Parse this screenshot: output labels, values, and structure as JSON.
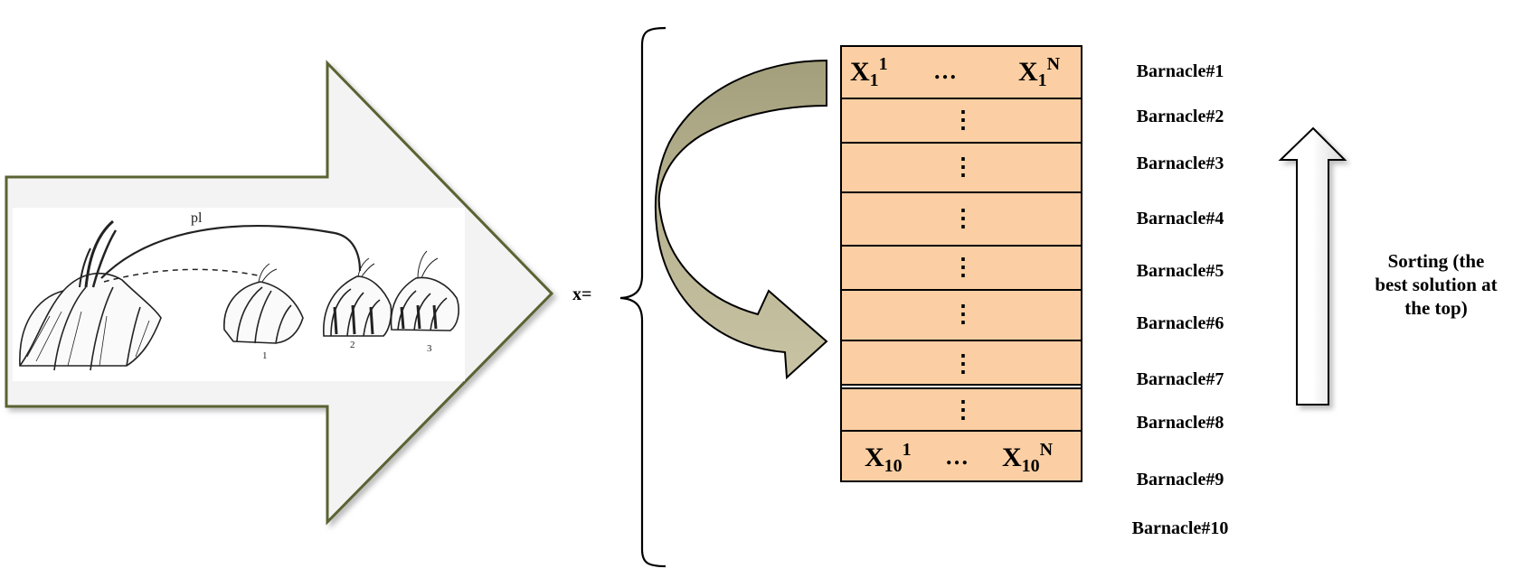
{
  "illustration": {
    "arc_label": "pl",
    "barnacle_numbers": [
      "1",
      "2",
      "3"
    ]
  },
  "matrix": {
    "x_equals": "x=",
    "first_row": {
      "start_base": "X",
      "start_sub": "1",
      "start_sup": "1",
      "ellipsis": "…",
      "end_base": "X",
      "end_sub": "1",
      "end_sup": "N"
    },
    "last_row": {
      "start_base": "X",
      "start_sub": "10",
      "start_sup": "1",
      "ellipsis": "…",
      "end_base": "X",
      "end_sub": "10",
      "end_sup": "N"
    },
    "vertical_ellipsis": "⋮"
  },
  "barnacle_labels": [
    "Barnacle#1",
    "Barnacle#2",
    "Barnacle#3",
    "Barnacle#4",
    "Barnacle#5",
    "Barnacle#6",
    "Barnacle#7",
    "Barnacle#8",
    "Barnacle#9",
    "Barnacle#10"
  ],
  "sorting_label": [
    "Sorting (the",
    "best solution at",
    "the top)"
  ],
  "colors": {
    "matrix_fill": "#fbcfa3",
    "curved_arrow": "#b2ad8a",
    "big_arrow_outline": "#5a6432",
    "big_arrow_fill": "#f3f3f3"
  }
}
